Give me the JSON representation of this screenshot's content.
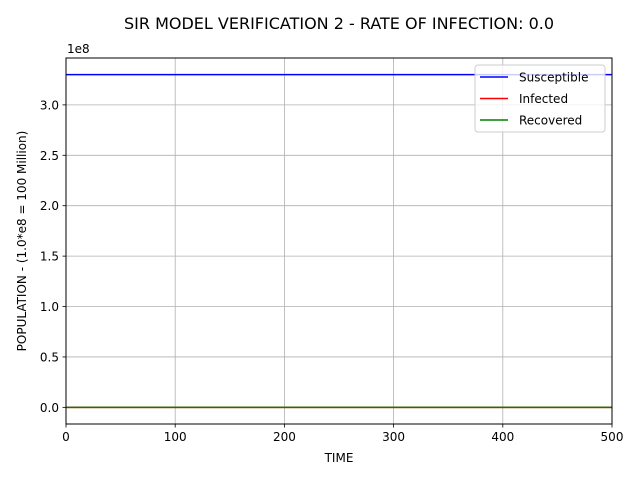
{
  "chart_data": {
    "type": "line",
    "title": "SIR MODEL VERIFICATION 2 - RATE OF INFECTION: 0.0",
    "xlabel": "TIME",
    "ylabel": "POPULATION - (1.0*e8 = 100 Million)",
    "y_offset_label": "1e8",
    "xlim": [
      0,
      500
    ],
    "ylim": [
      -16500000,
      346500000
    ],
    "x_ticks": [
      0,
      100,
      200,
      300,
      400,
      500
    ],
    "x_tick_labels": [
      "0",
      "100",
      "200",
      "300",
      "400",
      "500"
    ],
    "y_ticks": [
      0,
      50000000,
      100000000,
      150000000,
      200000000,
      250000000,
      300000000
    ],
    "y_tick_labels": [
      "0.0",
      "0.5",
      "1.0",
      "1.5",
      "2.0",
      "2.5",
      "3.0"
    ],
    "grid": true,
    "legend_position": "top-right",
    "series": [
      {
        "name": "Susceptible",
        "color": "#0000ff",
        "x": [
          0,
          500
        ],
        "y": [
          330000000,
          330000000
        ]
      },
      {
        "name": "Infected",
        "color": "#ff0000",
        "x": [
          0,
          500
        ],
        "y": [
          0,
          0
        ]
      },
      {
        "name": "Recovered",
        "color": "#008000",
        "x": [
          0,
          500
        ],
        "y": [
          0,
          0
        ]
      }
    ]
  }
}
